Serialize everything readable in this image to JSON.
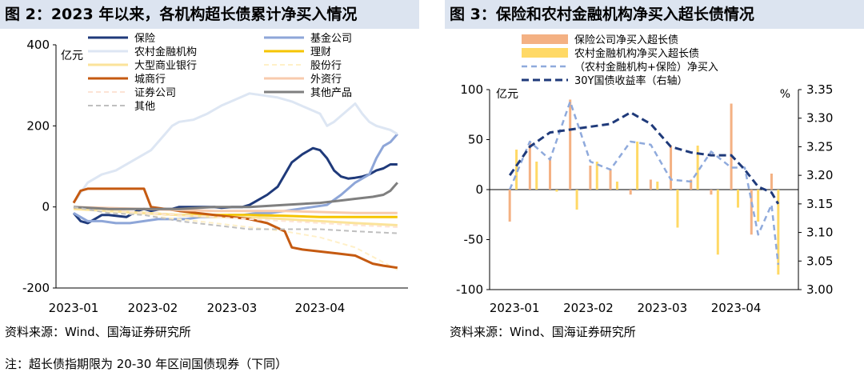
{
  "left": {
    "title": "图 2：2023 年以来，各机构超长债累计净买入情况",
    "source": "资料来源：Wind、国海证券研究所",
    "chart_data": {
      "type": "line",
      "ylabel": "亿元",
      "ylim": [
        -200,
        400
      ],
      "yticks": [
        400,
        200,
        0,
        -200
      ],
      "x_ticks": [
        {
          "label": "2023-01",
          "pos": 0
        },
        {
          "label": "2023-02",
          "pos": 22.5
        },
        {
          "label": "2023-03",
          "pos": 45
        },
        {
          "label": "2023-04",
          "pos": 70
        }
      ],
      "x_range": [
        -5,
        95
      ],
      "legend_position": "top",
      "series": [
        {
          "name": "保险",
          "color": "#1f3a7a",
          "width": 3,
          "dash": "",
          "x": [
            0,
            2,
            4,
            6,
            8,
            10,
            12,
            15,
            18,
            20,
            22,
            25,
            28,
            30,
            32,
            35,
            38,
            40,
            42,
            45,
            48,
            50,
            52,
            55,
            58,
            60,
            62,
            65,
            68,
            70,
            72,
            74,
            76,
            78,
            80,
            82,
            84,
            86,
            88,
            90,
            92
          ],
          "values": [
            -15,
            -35,
            -40,
            -30,
            -20,
            -20,
            -22,
            -25,
            -10,
            -5,
            -10,
            -5,
            -5,
            0,
            0,
            0,
            0,
            0,
            -2,
            0,
            0,
            5,
            15,
            30,
            50,
            80,
            110,
            130,
            145,
            140,
            120,
            90,
            75,
            70,
            72,
            75,
            80,
            90,
            95,
            105,
            105
          ]
        },
        {
          "name": "基金公司",
          "color": "#8ea6d8",
          "width": 3,
          "dash": "",
          "x": [
            0,
            4,
            8,
            12,
            16,
            20,
            24,
            28,
            32,
            36,
            40,
            44,
            48,
            52,
            56,
            60,
            64,
            68,
            72,
            76,
            80,
            82,
            84,
            86,
            88,
            90,
            92
          ],
          "values": [
            -15,
            -35,
            -35,
            -40,
            -40,
            -35,
            -30,
            -30,
            -30,
            -25,
            -25,
            -20,
            -20,
            -15,
            -15,
            -10,
            -5,
            0,
            5,
            30,
            60,
            70,
            80,
            120,
            150,
            160,
            180
          ]
        },
        {
          "name": "农村金融机构",
          "color": "#dde6f3",
          "width": 3,
          "dash": "",
          "x": [
            0,
            4,
            8,
            12,
            16,
            20,
            22,
            24,
            26,
            28,
            30,
            34,
            38,
            42,
            46,
            50,
            54,
            58,
            62,
            66,
            70,
            72,
            74,
            78,
            80,
            82,
            84,
            86,
            88,
            90,
            92
          ],
          "values": [
            10,
            60,
            80,
            90,
            110,
            130,
            140,
            160,
            180,
            200,
            210,
            215,
            230,
            250,
            265,
            280,
            275,
            270,
            260,
            245,
            230,
            200,
            210,
            240,
            255,
            230,
            210,
            200,
            195,
            190,
            180
          ]
        },
        {
          "name": "理财",
          "color": "#f5c400",
          "width": 3,
          "dash": "",
          "x": [
            0,
            10,
            20,
            30,
            40,
            50,
            60,
            70,
            80,
            92
          ],
          "values": [
            0,
            -10,
            -15,
            -20,
            -20,
            -20,
            -22,
            -25,
            -25,
            -25
          ]
        },
        {
          "name": "大型商业银行",
          "color": "#fbe39a",
          "width": 3,
          "dash": "",
          "x": [
            0,
            10,
            20,
            30,
            40,
            50,
            60,
            70,
            80,
            92
          ],
          "values": [
            -5,
            -10,
            -15,
            -20,
            -25,
            -25,
            -30,
            -35,
            -40,
            -45
          ]
        },
        {
          "name": "股份行",
          "color": "#fff0c8",
          "width": 2,
          "dash": "6,4",
          "x": [
            0,
            10,
            20,
            30,
            40,
            50,
            60,
            70,
            80,
            92
          ],
          "values": [
            0,
            -10,
            -20,
            -30,
            -40,
            -50,
            -60,
            -75,
            -100,
            -155
          ]
        },
        {
          "name": "城商行",
          "color": "#c55a11",
          "width": 3,
          "dash": "",
          "x": [
            0,
            2,
            4,
            10,
            15,
            20,
            22,
            30,
            40,
            50,
            55,
            60,
            62,
            65,
            70,
            75,
            80,
            85,
            88,
            92
          ],
          "values": [
            10,
            40,
            45,
            45,
            45,
            45,
            0,
            -10,
            -20,
            -30,
            -40,
            -60,
            -100,
            -105,
            -110,
            -115,
            -120,
            -140,
            -145,
            -150
          ]
        },
        {
          "name": "外资行",
          "color": "#f8cbad",
          "width": 3,
          "dash": "",
          "x": [
            0,
            20,
            40,
            60,
            80,
            92
          ],
          "values": [
            0,
            -5,
            -10,
            -10,
            -15,
            -15
          ]
        },
        {
          "name": "证券公司",
          "color": "#fde4d6",
          "width": 2,
          "dash": "6,4",
          "x": [
            0,
            10,
            20,
            30,
            40,
            50,
            60,
            70,
            80,
            92
          ],
          "values": [
            0,
            -5,
            -15,
            -20,
            -25,
            -30,
            -35,
            -40,
            -45,
            -50
          ]
        },
        {
          "name": "其他产品",
          "color": "#7f7f7f",
          "width": 3,
          "dash": "",
          "x": [
            0,
            10,
            20,
            30,
            40,
            50,
            60,
            70,
            75,
            80,
            85,
            88,
            90,
            92
          ],
          "values": [
            0,
            -5,
            -5,
            -5,
            0,
            0,
            5,
            10,
            15,
            20,
            25,
            30,
            40,
            60
          ]
        },
        {
          "name": "其他",
          "color": "#bfbfbf",
          "width": 2,
          "dash": "6,4",
          "x": [
            0,
            10,
            20,
            30,
            40,
            50,
            60,
            70,
            80,
            92
          ],
          "values": [
            0,
            -15,
            -20,
            -35,
            -45,
            -55,
            -55,
            -55,
            -60,
            -65
          ]
        }
      ]
    }
  },
  "right": {
    "title": "图 3：保险和农村金融机构净买入超长债情况",
    "source": "资料来源：Wind、国海证券研究所",
    "chart_data": {
      "type": "bar",
      "ylabel": "亿元",
      "y2label": "%",
      "ylim": [
        -100,
        100
      ],
      "yticks": [
        100,
        50,
        0,
        -50,
        -100
      ],
      "y2lim": [
        3.0,
        3.35
      ],
      "y2ticks": [
        "3.35",
        "3.30",
        "3.25",
        "3.20",
        "3.15",
        "3.10",
        "3.05",
        "3.00"
      ],
      "x_ticks": [
        {
          "label": "2023-01",
          "pos": 0
        },
        {
          "label": "2023-02",
          "pos": 11
        },
        {
          "label": "2023-03",
          "pos": 22
        },
        {
          "label": "2023-04",
          "pos": 33
        }
      ],
      "x_range": [
        -3,
        43
      ],
      "legend_position": "top",
      "bar_series": [
        {
          "name": "保险公司净买入超长债",
          "color": "#f4b183",
          "x": [
            0,
            3,
            6,
            9,
            12,
            15,
            18,
            21,
            24,
            27,
            30,
            33,
            36,
            39
          ],
          "values": [
            -32,
            48,
            32,
            90,
            24,
            20,
            -5,
            10,
            44,
            10,
            -5,
            86,
            -45,
            16
          ]
        },
        {
          "name": "农村金融机构净买入超长债",
          "color": "#ffd966",
          "x": [
            1,
            4,
            7,
            10,
            13,
            16,
            19,
            22,
            25,
            28,
            31,
            34,
            37,
            40
          ],
          "values": [
            40,
            28,
            -2,
            -20,
            28,
            8,
            48,
            8,
            -38,
            44,
            -65,
            -18,
            -32,
            -85
          ]
        }
      ],
      "line_series": [
        {
          "name": "（农村金融机构+保险）净买入",
          "color": "#8faadc",
          "dash": "7,5",
          "axis": "left",
          "x": [
            0,
            3,
            6,
            9,
            12,
            15,
            18,
            21,
            24,
            27,
            30,
            33,
            35,
            37,
            39,
            40
          ],
          "values": [
            0,
            48,
            30,
            88,
            28,
            20,
            48,
            45,
            10,
            8,
            38,
            22,
            22,
            -45,
            -15,
            -75
          ]
        },
        {
          "name": "30Y国债收益率（右轴）",
          "color": "#1f3a7a",
          "dash": "9,5",
          "axis": "right",
          "x": [
            0,
            3,
            6,
            9,
            12,
            15,
            18,
            21,
            24,
            27,
            30,
            33,
            35,
            37,
            39,
            40
          ],
          "values": [
            3.2,
            3.25,
            3.275,
            3.28,
            3.285,
            3.29,
            3.31,
            3.29,
            3.25,
            3.24,
            3.235,
            3.235,
            3.21,
            3.18,
            3.17,
            3.15
          ]
        }
      ]
    }
  },
  "note": "注：超长债指期限为 20-30 年区间国债现券（下同）"
}
